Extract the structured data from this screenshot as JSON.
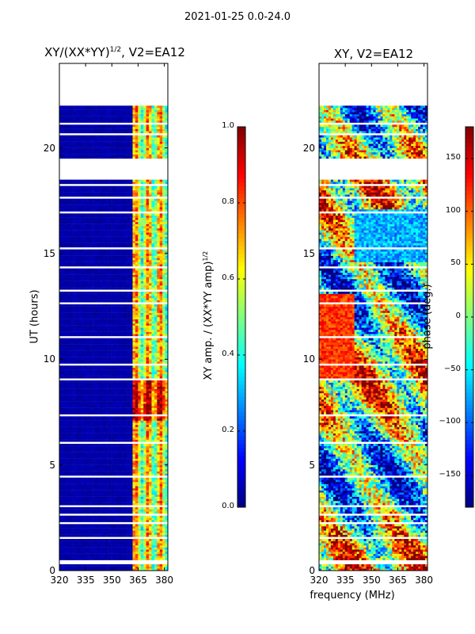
{
  "suptitle": "2021-01-25 0.0-24.0",
  "chart_data": [
    {
      "type": "heatmap",
      "title_base": "XY/(XX*YY)",
      "title_sup": "1/2",
      "title_suffix": ", V2=EA12",
      "xlabel": "",
      "ylabel": "UT (hours)",
      "xlim": [
        320,
        382
      ],
      "ylim": [
        0,
        24
      ],
      "xticks": [
        320,
        335,
        350,
        365,
        380
      ],
      "yticks": [
        0,
        5,
        10,
        15,
        20
      ],
      "colorbar": {
        "label_base": "XY amp. / (XX*YY amp)",
        "label_sup": "1/2",
        "range": [
          0.0,
          1.0
        ],
        "ticks": [
          "0.0",
          "0.2",
          "0.4",
          "0.6",
          "0.8",
          "1.0"
        ],
        "tick_values": [
          0.0,
          0.2,
          0.4,
          0.6,
          0.8,
          1.0
        ]
      },
      "flagged_hour_ranges": [
        [
          0.3,
          0.45
        ],
        [
          1.5,
          1.6
        ],
        [
          2.2,
          2.25
        ],
        [
          2.6,
          2.65
        ],
        [
          3.0,
          3.05
        ],
        [
          4.4,
          4.45
        ],
        [
          6.0,
          6.05
        ],
        [
          7.3,
          7.35
        ],
        [
          8.45,
          8.5
        ],
        [
          9.0,
          9.1
        ],
        [
          9.7,
          9.8
        ],
        [
          11.0,
          11.05
        ],
        [
          12.6,
          12.7
        ],
        [
          13.2,
          13.3
        ],
        [
          14.3,
          14.35
        ],
        [
          15.2,
          15.25
        ],
        [
          16.9,
          17.0
        ],
        [
          17.6,
          17.65
        ],
        [
          18.2,
          18.3
        ],
        [
          18.5,
          19.5
        ],
        [
          20.6,
          20.7
        ],
        [
          21.1,
          21.2
        ],
        [
          22.0,
          24.0
        ]
      ],
      "notes": "background amplitude near 0 (dark blue); elevated 0.3-0.9 between 362 and 382 MHz"
    },
    {
      "type": "heatmap",
      "title": "XY, V2=EA12",
      "xlabel": "frequency (MHz)",
      "ylabel": "",
      "xlim": [
        320,
        382
      ],
      "ylim": [
        0,
        24
      ],
      "xticks": [
        320,
        335,
        350,
        365,
        380
      ],
      "yticks": [
        0,
        5,
        10,
        15,
        20
      ],
      "colorbar": {
        "label": "phase (deg.)",
        "range": [
          -180,
          180
        ],
        "ticks": [
          "−150",
          "−100",
          "−50",
          "0",
          "50",
          "100",
          "150"
        ],
        "tick_values": [
          -150,
          -100,
          -50,
          0,
          50,
          100,
          150
        ]
      },
      "flagged_hour_ranges": [
        [
          0.3,
          0.45
        ],
        [
          1.5,
          1.6
        ],
        [
          2.2,
          2.25
        ],
        [
          2.6,
          2.65
        ],
        [
          3.0,
          3.05
        ],
        [
          4.4,
          4.45
        ],
        [
          6.0,
          6.05
        ],
        [
          7.3,
          7.35
        ],
        [
          8.45,
          8.5
        ],
        [
          9.0,
          9.1
        ],
        [
          9.7,
          9.8
        ],
        [
          11.0,
          11.05
        ],
        [
          12.6,
          12.7
        ],
        [
          13.2,
          13.3
        ],
        [
          14.3,
          14.35
        ],
        [
          15.2,
          15.25
        ],
        [
          16.9,
          17.0
        ],
        [
          17.6,
          17.65
        ],
        [
          18.2,
          18.3
        ],
        [
          18.5,
          19.5
        ],
        [
          20.6,
          20.7
        ],
        [
          21.1,
          21.2
        ],
        [
          22.0,
          24.0
        ]
      ]
    }
  ]
}
